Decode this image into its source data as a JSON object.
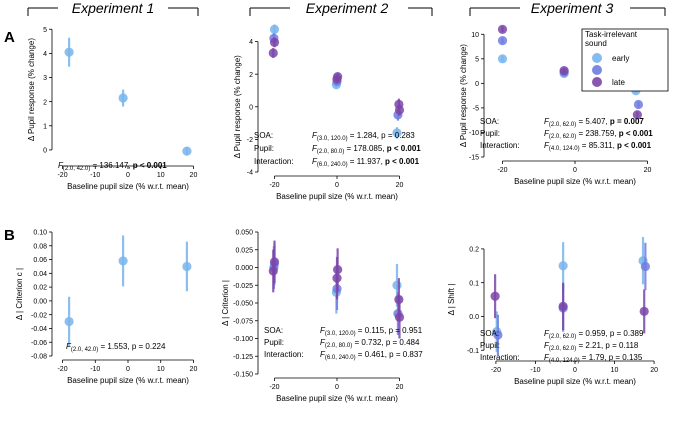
{
  "experiments": [
    {
      "title": "Experiment 1"
    },
    {
      "title": "Experiment 2"
    },
    {
      "title": "Experiment 3"
    }
  ],
  "row_labels": [
    "A",
    "B"
  ],
  "legend": {
    "title_line1": "Task-irrelevant",
    "title_line2": "sound",
    "entries": [
      {
        "label": "early",
        "color": "#78b4ec"
      },
      {
        "label": "",
        "color": "#6e7ce0"
      },
      {
        "label": "late",
        "color": "#7b45a8"
      }
    ]
  },
  "colors": {
    "early": "#78b4ec",
    "mid": "#6e7ce0",
    "late": "#7b45a8",
    "single": "#78b4ec"
  },
  "chart_data": [
    {
      "id": "a1",
      "type": "scatter",
      "title": "Experiment 1",
      "xlabel": "Baseline pupil size (% w.r.t. mean)",
      "ylabel": "Δ Pupil response (% change)",
      "xlim": [
        -22,
        22
      ],
      "ylim": [
        -0.5,
        5.3
      ],
      "xticks": [
        -20,
        -10,
        0,
        10,
        20
      ],
      "yticks": [
        0,
        1,
        2,
        3,
        4,
        5
      ],
      "series": [
        {
          "name": "all",
          "color": "single",
          "points": [
            {
              "x": -18,
              "y": 4.05,
              "err": 0.6
            },
            {
              "x": -1.5,
              "y": 2.15,
              "err": 0.35
            },
            {
              "x": 18,
              "y": -0.05,
              "err": 0.15
            }
          ]
        }
      ],
      "stats": [
        {
          "label": "",
          "f": "F",
          "df": "(2.0, 42.0)",
          "value": " = 136.147, ",
          "p": "p < 0.001",
          "bold": true
        }
      ]
    },
    {
      "id": "a2",
      "type": "scatter",
      "title": "Experiment 2",
      "xlabel": "Baseline pupil size (% w.r.t. mean)",
      "ylabel": "Δ Pupil response (% change)",
      "xlim": [
        -24,
        24
      ],
      "ylim": [
        -4,
        5.2
      ],
      "xticks": [
        -20,
        0,
        20
      ],
      "yticks": [
        -4,
        -2,
        0,
        2,
        4
      ],
      "series": [
        {
          "name": "early",
          "color": "early",
          "points": [
            {
              "x": -20,
              "y": 4.75,
              "err": 0.3
            },
            {
              "x": -0.2,
              "y": 1.35,
              "err": 0.2
            },
            {
              "x": 19.2,
              "y": -1.6,
              "err": 0.35
            }
          ]
        },
        {
          "name": "mid",
          "color": "mid",
          "points": [
            {
              "x": -20.2,
              "y": 4.2,
              "err": 0.3
            },
            {
              "x": 0,
              "y": 1.55,
              "err": 0.2
            },
            {
              "x": 19.5,
              "y": -0.5,
              "err": 0.35
            }
          ]
        },
        {
          "name": "late-a",
          "color": "late",
          "points": [
            {
              "x": -20.4,
              "y": 3.3,
              "err": 0.3
            },
            {
              "x": 0.2,
              "y": 1.85,
              "err": 0.2
            },
            {
              "x": 19.8,
              "y": 0.15,
              "err": 0.35
            }
          ]
        },
        {
          "name": "late-b",
          "color": "late",
          "points": [
            {
              "x": -20,
              "y": 3.95,
              "err": 0.3
            },
            {
              "x": 0,
              "y": 1.7,
              "err": 0.2
            },
            {
              "x": 20,
              "y": -0.2,
              "err": 0.35
            }
          ]
        }
      ],
      "stats": [
        {
          "label": "SOA:",
          "f": "F",
          "df": "(3.0, 120.0)",
          "value": " = 1.284, ",
          "p": "p = 0.283",
          "bold": false
        },
        {
          "label": "Pupil:",
          "f": "F",
          "df": "(2.0, 80.0)",
          "value": " = 178.085, ",
          "p": "p < 0.001",
          "bold": true
        },
        {
          "label": "Interaction:",
          "f": "F",
          "df": "(6.0, 240.0)",
          "value": " = 11.937, ",
          "p": "p < 0.001",
          "bold": true
        }
      ]
    },
    {
      "id": "a3",
      "type": "scatter",
      "title": "Experiment 3",
      "xlabel": "Baseline pupil size (% w.r.t. mean)",
      "ylabel": "Δ Pupil response (% change)",
      "xlim": [
        -24,
        24
      ],
      "ylim": [
        -15,
        12.5
      ],
      "xticks": [
        -20,
        0,
        20
      ],
      "yticks": [
        -15,
        -10,
        -5,
        0,
        5,
        10
      ],
      "series": [
        {
          "name": "early",
          "color": "early",
          "points": [
            {
              "x": -20,
              "y": 5.0,
              "err": 0.6
            },
            {
              "x": -3,
              "y": 2.0,
              "err": 0.4
            },
            {
              "x": 16.8,
              "y": -1.5,
              "err": 0.6
            }
          ]
        },
        {
          "name": "mid",
          "color": "mid",
          "points": [
            {
              "x": -20,
              "y": 8.7,
              "err": 0.6
            },
            {
              "x": -3,
              "y": 2.3,
              "err": 0.4
            },
            {
              "x": 17.5,
              "y": -4.3,
              "err": 0.6
            }
          ]
        },
        {
          "name": "late",
          "color": "late",
          "points": [
            {
              "x": -20,
              "y": 11.0,
              "err": 0.6
            },
            {
              "x": -3,
              "y": 2.6,
              "err": 0.4
            },
            {
              "x": 17.2,
              "y": -6.4,
              "err": 0.6
            }
          ]
        }
      ],
      "stats": [
        {
          "label": "SOA:",
          "f": "F",
          "df": "(2.0, 62.0)",
          "value": " = 5.407, ",
          "p": "p = 0.007",
          "bold": true
        },
        {
          "label": "Pupil:",
          "f": "F",
          "df": "(2.0, 62.0)",
          "value": " = 238.759, ",
          "p": "p < 0.001",
          "bold": true
        },
        {
          "label": "Interaction:",
          "f": "F",
          "df": "(4.0, 124.0)",
          "value": " = 85.311, ",
          "p": "p < 0.001",
          "bold": true
        }
      ]
    },
    {
      "id": "b1",
      "type": "scatter",
      "title": "",
      "xlabel": "Baseline pupil size (% w.r.t. mean)",
      "ylabel": "Δ | Criterion c |",
      "xlim": [
        -22,
        22
      ],
      "ylim": [
        -0.08,
        0.1
      ],
      "xticks": [
        -20,
        -10,
        0,
        10,
        20
      ],
      "yticks": [
        -0.08,
        -0.06,
        -0.04,
        -0.02,
        0.0,
        0.02,
        0.04,
        0.06,
        0.08,
        0.1
      ],
      "ytick_labels": [
        "-0.08",
        "-0.06",
        "-0.04",
        "-0.02",
        "0.00",
        "0.02",
        "0.04",
        "0.06",
        "0.08",
        "0.10"
      ],
      "series": [
        {
          "name": "all",
          "color": "single",
          "points": [
            {
              "x": -18,
              "y": -0.03,
              "err": 0.036
            },
            {
              "x": -1.5,
              "y": 0.058,
              "err": 0.037
            },
            {
              "x": 18,
              "y": 0.05,
              "err": 0.036
            }
          ]
        }
      ],
      "stats": [
        {
          "label": "",
          "f": "F",
          "df": "(2.0, 42.0)",
          "value": " = 1.553, ",
          "p": "p = 0.224",
          "bold": false
        }
      ]
    },
    {
      "id": "b2",
      "type": "scatter",
      "title": "",
      "xlabel": "Baseline pupil size (% w.r.t. mean)",
      "ylabel": "Δ | Criterion |",
      "xlim": [
        -24,
        24
      ],
      "ylim": [
        -0.15,
        0.05
      ],
      "xticks": [
        -20,
        0,
        20
      ],
      "yticks": [
        -0.15,
        -0.125,
        -0.1,
        -0.075,
        -0.05,
        -0.025,
        0.0,
        0.025,
        0.05
      ],
      "ytick_labels": [
        "-0.150",
        "-0.125",
        "-0.100",
        "-0.075",
        "-0.050",
        "-0.025",
        "0.000",
        "0.025",
        "0.050"
      ],
      "series": [
        {
          "name": "early",
          "color": "early",
          "points": [
            {
              "x": -20,
              "y": 0.005,
              "err": 0.03
            },
            {
              "x": -0.2,
              "y": -0.035,
              "err": 0.03
            },
            {
              "x": 19.2,
              "y": -0.025,
              "err": 0.03
            }
          ]
        },
        {
          "name": "mid",
          "color": "mid",
          "points": [
            {
              "x": -20.2,
              "y": 0.0,
              "err": 0.03
            },
            {
              "x": 0,
              "y": -0.03,
              "err": 0.03
            },
            {
              "x": 19.5,
              "y": -0.065,
              "err": 0.03
            }
          ]
        },
        {
          "name": "late-a",
          "color": "late",
          "points": [
            {
              "x": -20.4,
              "y": -0.005,
              "err": 0.03
            },
            {
              "x": 0.2,
              "y": -0.003,
              "err": 0.03
            },
            {
              "x": 19.8,
              "y": -0.045,
              "err": 0.03
            }
          ]
        },
        {
          "name": "late-b",
          "color": "late",
          "points": [
            {
              "x": -20,
              "y": 0.008,
              "err": 0.03
            },
            {
              "x": 0,
              "y": -0.015,
              "err": 0.03
            },
            {
              "x": 20,
              "y": -0.07,
              "err": 0.03
            }
          ]
        }
      ],
      "stats": [
        {
          "label": "SOA:",
          "f": "F",
          "df": "(3.0, 120.0)",
          "value": " = 0.115, ",
          "p": "p = 0.951",
          "bold": false
        },
        {
          "label": "Pupil:",
          "f": "F",
          "df": "(2.0, 80.0)",
          "value": " = 0.732, ",
          "p": "p = 0.484",
          "bold": false
        },
        {
          "label": "Interaction:",
          "f": "F",
          "df": "(6.0, 240.0)",
          "value": " = 0.461, ",
          "p": "p = 0.837",
          "bold": false
        }
      ]
    },
    {
      "id": "b3",
      "type": "scatter",
      "title": "",
      "xlabel": "Baseline pupil size (% w.r.t. mean)",
      "ylabel": "Δ | Shift |",
      "xlim": [
        -22,
        22
      ],
      "ylim": [
        -0.12,
        0.25
      ],
      "xticks": [
        -20,
        -10,
        0,
        10,
        20
      ],
      "yticks": [
        -0.1,
        0.0,
        0.1,
        0.2
      ],
      "ytick_labels": [
        "-0.1",
        "0.0",
        "0.1",
        "0.2"
      ],
      "series": [
        {
          "name": "early",
          "color": "early",
          "points": [
            {
              "x": -19.8,
              "y": -0.045,
              "err": 0.06
            },
            {
              "x": -3,
              "y": 0.15,
              "err": 0.07
            },
            {
              "x": 17.2,
              "y": 0.165,
              "err": 0.07
            }
          ]
        },
        {
          "name": "mid",
          "color": "mid",
          "points": [
            {
              "x": -19.5,
              "y": -0.055,
              "err": 0.06
            },
            {
              "x": -3,
              "y": 0.025,
              "err": 0.07
            },
            {
              "x": 17.8,
              "y": 0.148,
              "err": 0.07
            }
          ]
        },
        {
          "name": "late",
          "color": "late",
          "points": [
            {
              "x": -20.2,
              "y": 0.06,
              "err": 0.065
            },
            {
              "x": -3,
              "y": 0.03,
              "err": 0.07
            },
            {
              "x": 17.5,
              "y": 0.015,
              "err": 0.065
            }
          ]
        }
      ],
      "stats": [
        {
          "label": "SOA:",
          "f": "F",
          "df": "(2.0, 62.0)",
          "value": " = 0.959, ",
          "p": "p = 0.389",
          "bold": false
        },
        {
          "label": "Pupil:",
          "f": "F",
          "df": "(2.0, 62.0)",
          "value": " = 2.21, ",
          "p": "p = 0.118",
          "bold": false
        },
        {
          "label": "Interaction:",
          "f": "F",
          "df": "(4.0, 124.0)",
          "value": " = 1.79, ",
          "p": "p = 0.135",
          "bold": false
        }
      ]
    }
  ]
}
